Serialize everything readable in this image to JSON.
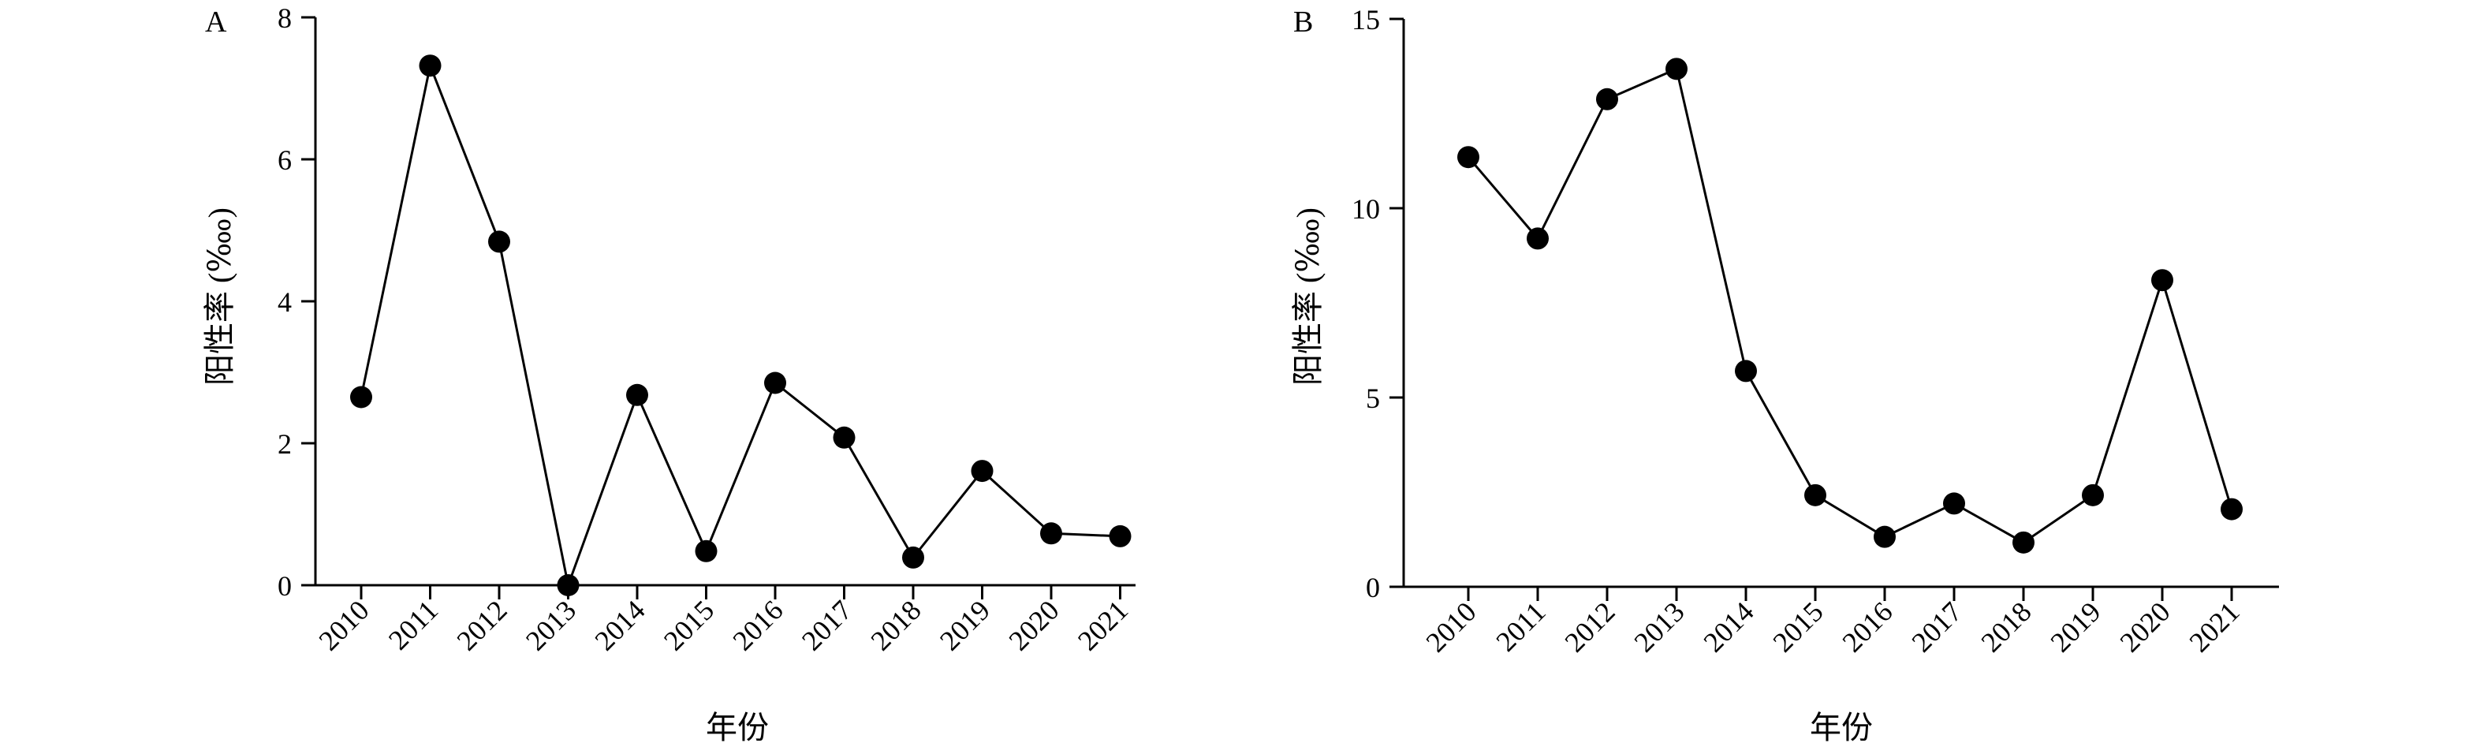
{
  "chart_data": [
    {
      "panel": "A",
      "type": "line",
      "categories": [
        "2010",
        "2011",
        "2012",
        "2013",
        "2014",
        "2015",
        "2016",
        "2017",
        "2018",
        "2019",
        "2020",
        "2021"
      ],
      "series": [
        {
          "values": [
            2.65,
            7.32,
            4.84,
            0.0,
            2.68,
            0.48,
            2.85,
            2.08,
            0.39,
            1.61,
            0.73,
            0.69
          ]
        }
      ],
      "xlabel": "年份",
      "ylabel": "阳性率 (‱)",
      "ylim": [
        0,
        8
      ],
      "yticks": [
        "0",
        "2",
        "4",
        "6",
        "8"
      ],
      "grid": false,
      "marker": "filled-circle",
      "color": "#000000"
    },
    {
      "panel": "B",
      "type": "line",
      "categories": [
        "2010",
        "2011",
        "2012",
        "2013",
        "2014",
        "2015",
        "2016",
        "2017",
        "2018",
        "2019",
        "2020",
        "2021"
      ],
      "series": [
        {
          "values": [
            11.35,
            9.2,
            12.88,
            13.68,
            5.7,
            2.42,
            1.32,
            2.2,
            1.17,
            2.42,
            8.1,
            2.05
          ]
        }
      ],
      "xlabel": "年份",
      "ylabel": "阳性率 (‱)",
      "ylim": [
        0,
        15
      ],
      "yticks": [
        "0",
        "5",
        "10",
        "15"
      ],
      "grid": false,
      "marker": "filled-circle",
      "color": "#000000"
    }
  ]
}
